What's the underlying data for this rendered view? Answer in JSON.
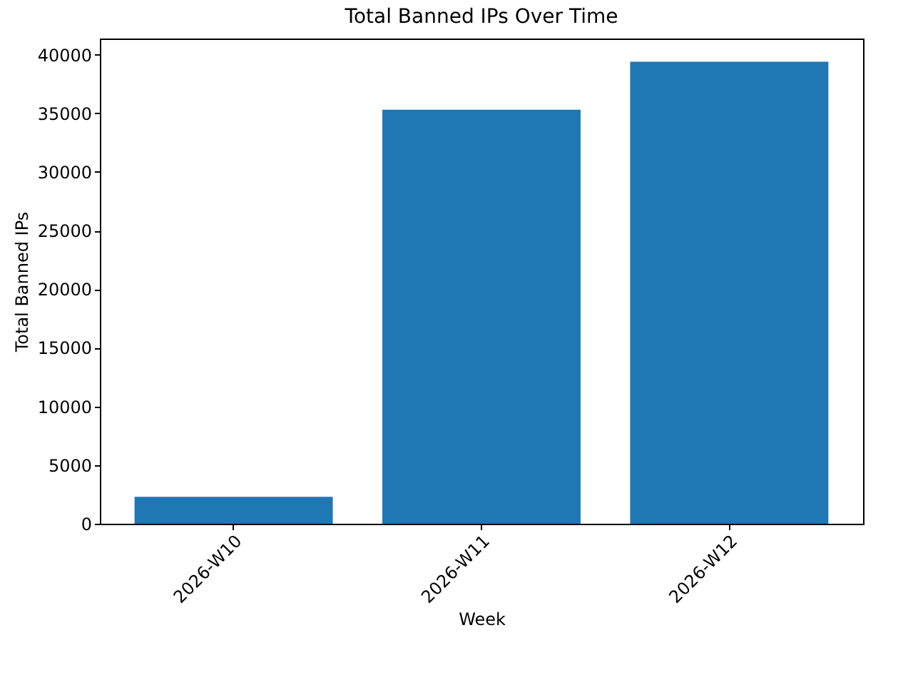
{
  "chart_data": {
    "type": "bar",
    "title": "Total Banned IPs Over Time",
    "xlabel": "Week",
    "ylabel": "Total Banned IPs",
    "categories": [
      "2026-W10",
      "2026-W11",
      "2026-W12"
    ],
    "values": [
      2300,
      35300,
      39400
    ],
    "color": "#1f77b4",
    "ylim": [
      0,
      41370
    ],
    "yticks": [
      0,
      5000,
      10000,
      15000,
      20000,
      25000,
      30000,
      35000,
      40000
    ],
    "grid": false
  }
}
